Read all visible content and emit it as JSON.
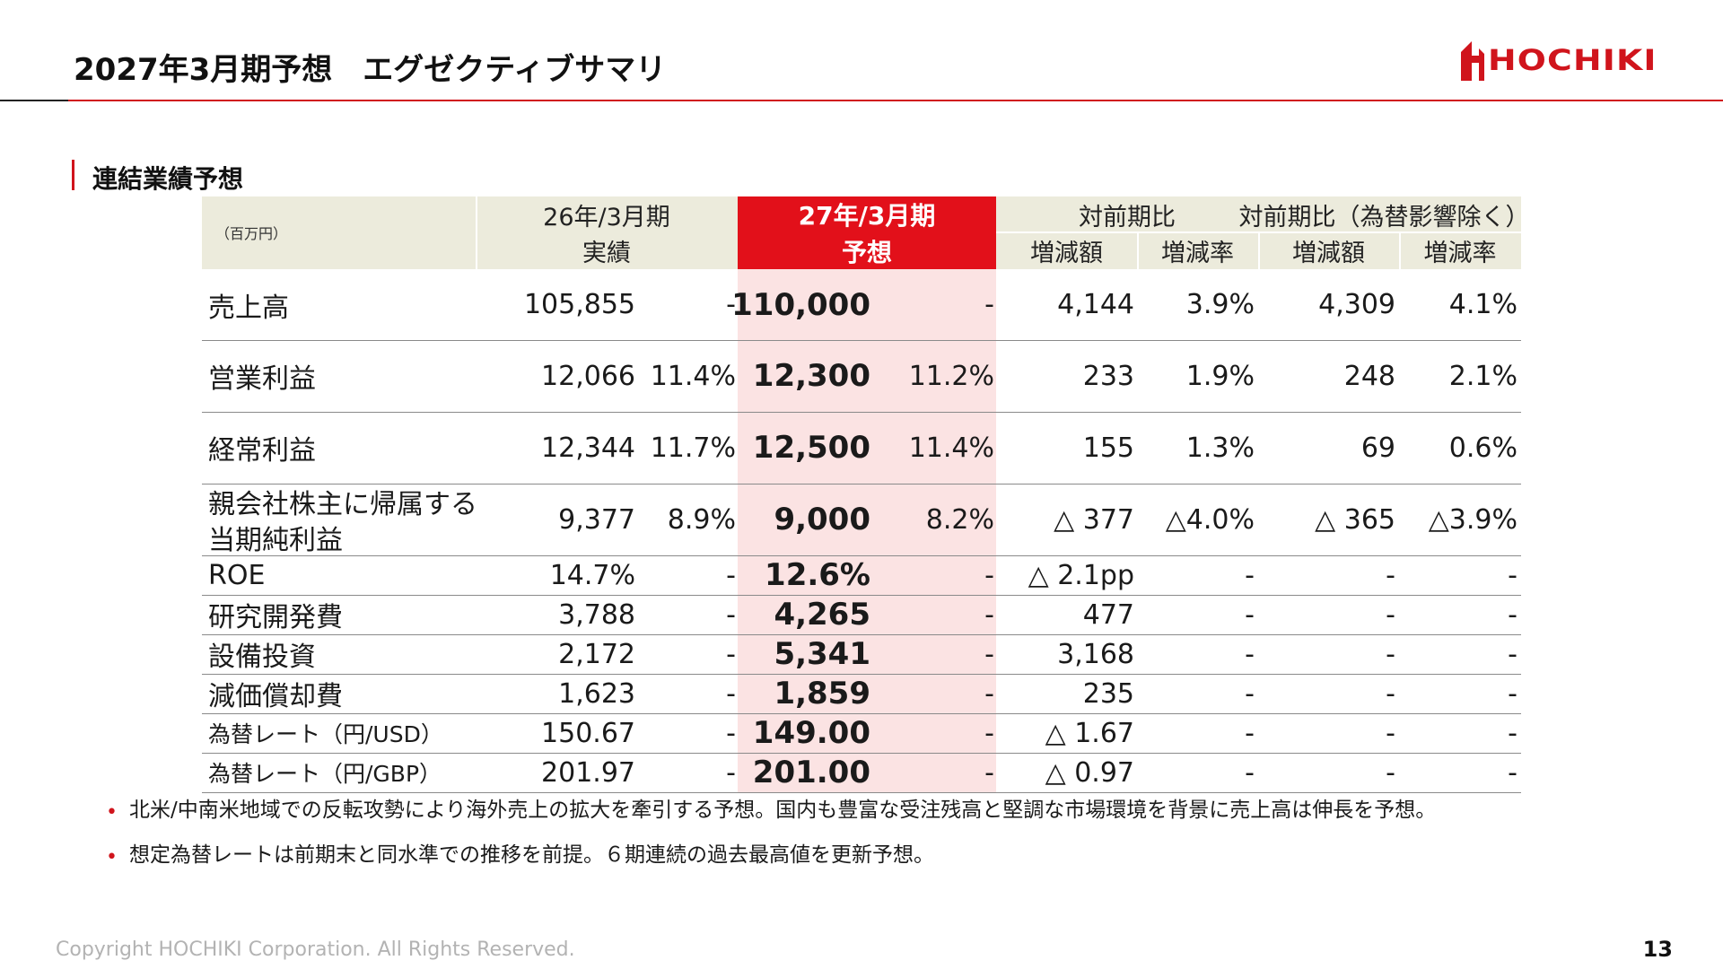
{
  "header": {
    "title": "2027年3月期予想　エグゼクティブサマリ",
    "logo_text": "HOCHIKI"
  },
  "section": {
    "title": "連結業績予想"
  },
  "table": {
    "unit": "（百万円）",
    "col_prev_line1": "26年/3月期",
    "col_prev_line2": "実績",
    "col_fcst_line1": "27年/3月期",
    "col_fcst_line2": "予想",
    "col_yoy": "対前期比",
    "col_yoy_fx": "対前期比（為替影響除く）",
    "sub_amount": "増減額",
    "sub_rate": "増減率",
    "sub_amount2": "増減額",
    "sub_rate2": "増減率",
    "rows": [
      {
        "label": "売上高",
        "prev": "105,855",
        "prev_pct": "-",
        "fcst": "110,000",
        "fcst_pct": "-",
        "chg": "4,144",
        "chg_pct": "3.9%",
        "chg_fx": "4,309",
        "chg_fx_pct": "4.1%"
      },
      {
        "label": "営業利益",
        "prev": "12,066",
        "prev_pct": "11.4%",
        "fcst": "12,300",
        "fcst_pct": "11.2%",
        "chg": "233",
        "chg_pct": "1.9%",
        "chg_fx": "248",
        "chg_fx_pct": "2.1%"
      },
      {
        "label": "経常利益",
        "prev": "12,344",
        "prev_pct": "11.7%",
        "fcst": "12,500",
        "fcst_pct": "11.4%",
        "chg": "155",
        "chg_pct": "1.3%",
        "chg_fx": "69",
        "chg_fx_pct": "0.6%"
      },
      {
        "label": "親会社株主に帰属する",
        "label2": "当期純利益",
        "prev": "9,377",
        "prev_pct": "8.9%",
        "fcst": "9,000",
        "fcst_pct": "8.2%",
        "chg": "△ 377",
        "chg_pct": "△4.0%",
        "chg_fx": "△ 365",
        "chg_fx_pct": "△3.9%"
      },
      {
        "label": "ROE",
        "prev": "14.7%",
        "prev_pct": "-",
        "fcst": "12.6%",
        "fcst_pct": "-",
        "chg": "△ 2.1pp",
        "chg_pct": "-",
        "chg_fx": "-",
        "chg_fx_pct": "-"
      },
      {
        "label": "研究開発費",
        "prev": "3,788",
        "prev_pct": "-",
        "fcst": "4,265",
        "fcst_pct": "-",
        "chg": "477",
        "chg_pct": "-",
        "chg_fx": "-",
        "chg_fx_pct": "-"
      },
      {
        "label": "設備投資",
        "prev": "2,172",
        "prev_pct": "-",
        "fcst": "5,341",
        "fcst_pct": "-",
        "chg": "3,168",
        "chg_pct": "-",
        "chg_fx": "-",
        "chg_fx_pct": "-"
      },
      {
        "label": "減価償却費",
        "prev": "1,623",
        "prev_pct": "-",
        "fcst": "1,859",
        "fcst_pct": "-",
        "chg": "235",
        "chg_pct": "-",
        "chg_fx": "-",
        "chg_fx_pct": "-"
      },
      {
        "label": "為替レート（円/USD）",
        "prev": "150.67",
        "prev_pct": "-",
        "fcst": "149.00",
        "fcst_pct": "-",
        "chg": "△ 1.67",
        "chg_pct": "-",
        "chg_fx": "-",
        "chg_fx_pct": "-"
      },
      {
        "label": "為替レート（円/GBP）",
        "prev": "201.97",
        "prev_pct": "-",
        "fcst": "201.00",
        "fcst_pct": "-",
        "chg": "△ 0.97",
        "chg_pct": "-",
        "chg_fx": "-",
        "chg_fx_pct": "-"
      }
    ]
  },
  "bullets": [
    "北米/中南米地域での反転攻勢により海外売上の拡大を牽引する予想。国内も豊富な受注残高と堅調な市場環境を背景に売上高は伸長を予想。",
    "想定為替レートは前期末と同水準での推移を前提。６期連続の過去最高値を更新予想。"
  ],
  "footer": {
    "copyright": "Copyright HOCHIKI Corporation. All Rights Reserved.",
    "page": "13"
  },
  "colors": {
    "brand_red": "#d0141c",
    "header_beige": "#ecebdc",
    "forecast_pink": "#fbe3e3",
    "forecast_header_red": "#e2101a"
  }
}
